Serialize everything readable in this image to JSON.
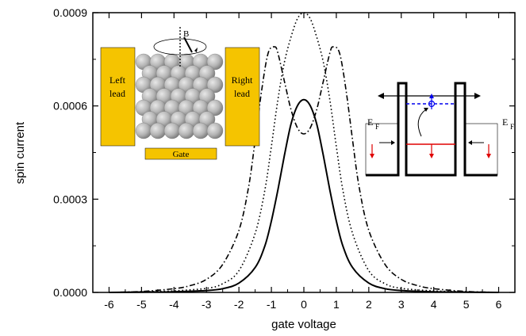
{
  "chart_data": {
    "type": "line",
    "xlabel": "gate voltage",
    "ylabel": "spin current",
    "xlim": [
      -6.5,
      6.5
    ],
    "ylim": [
      0,
      0.0009
    ],
    "x_ticks": [
      "-6",
      "-5",
      "-4",
      "-3",
      "-2",
      "-1",
      "0",
      "1",
      "2",
      "3",
      "4",
      "5",
      "6"
    ],
    "y_ticks": [
      "0.0000",
      "0.0003",
      "0.0006",
      "0.0009"
    ],
    "grid": false,
    "series": [
      {
        "style": "solid",
        "x": [
          -6,
          -5,
          -4,
          -3,
          -2.5,
          -2,
          -1.5,
          -1.2,
          -1,
          -0.8,
          -0.6,
          -0.4,
          -0.2,
          0,
          0.2,
          0.4,
          0.6,
          0.8,
          1,
          1.2,
          1.5,
          2,
          2.5,
          3,
          4,
          5,
          6
        ],
        "y": [
          0,
          1e-06,
          2e-06,
          6e-06,
          1.2e-05,
          3e-05,
          8e-05,
          0.00015,
          0.00023,
          0.00033,
          0.00044,
          0.00054,
          0.0006,
          0.00062,
          0.0006,
          0.00054,
          0.00044,
          0.00033,
          0.00023,
          0.00015,
          8e-05,
          3e-05,
          1.2e-05,
          6e-06,
          2e-06,
          1e-06,
          0
        ]
      },
      {
        "style": "dotted",
        "x": [
          -6,
          -5,
          -4,
          -3,
          -2.5,
          -2,
          -1.5,
          -1.2,
          -1,
          -0.8,
          -0.6,
          -0.4,
          -0.2,
          0,
          0.2,
          0.4,
          0.6,
          0.8,
          1,
          1.2,
          1.5,
          2,
          2.5,
          3,
          4,
          5,
          6
        ],
        "y": [
          0,
          2e-06,
          5e-06,
          1.3e-05,
          2.8e-05,
          7e-05,
          0.00019,
          0.00033,
          0.00047,
          0.00062,
          0.00074,
          0.00082,
          0.00088,
          0.0009,
          0.00088,
          0.00082,
          0.00074,
          0.00062,
          0.00047,
          0.00033,
          0.00019,
          7e-05,
          2.8e-05,
          1.3e-05,
          5e-06,
          2e-06,
          0
        ]
      },
      {
        "style": "dash-dot",
        "x": [
          -6,
          -5,
          -4,
          -3.5,
          -3,
          -2.5,
          -2,
          -1.7,
          -1.5,
          -1.3,
          -1.1,
          -0.9,
          -0.8,
          -0.6,
          -0.4,
          -0.2,
          0,
          0.2,
          0.4,
          0.6,
          0.8,
          0.9,
          1.1,
          1.3,
          1.5,
          1.7,
          2,
          2.5,
          3,
          3.5,
          4,
          5,
          6
        ],
        "y": [
          0,
          3e-06,
          1.2e-05,
          2.2e-05,
          4.2e-05,
          9e-05,
          0.0002,
          0.00034,
          0.00049,
          0.00065,
          0.00077,
          0.00079,
          0.00077,
          0.00068,
          0.00059,
          0.00053,
          0.00051,
          0.00053,
          0.00059,
          0.00068,
          0.00077,
          0.00079,
          0.00077,
          0.00065,
          0.00049,
          0.00034,
          0.0002,
          9e-05,
          4.2e-05,
          2.2e-05,
          1.2e-05,
          3e-06,
          0
        ]
      }
    ],
    "inset_left": {
      "left_lead": [
        "Left",
        "lead"
      ],
      "right_lead": [
        "Right",
        "lead"
      ],
      "gate": "Gate",
      "field": "B",
      "colors": {
        "lead": "#f5c400",
        "sphere": "#b4b4b4"
      }
    },
    "inset_right": {
      "left_fermi": "E",
      "right_fermi": "E",
      "fermi_subscript": "F",
      "colors": {
        "level": "#e00000",
        "upper_level": "#0000ee",
        "arrow_down": "#e00000"
      }
    }
  }
}
